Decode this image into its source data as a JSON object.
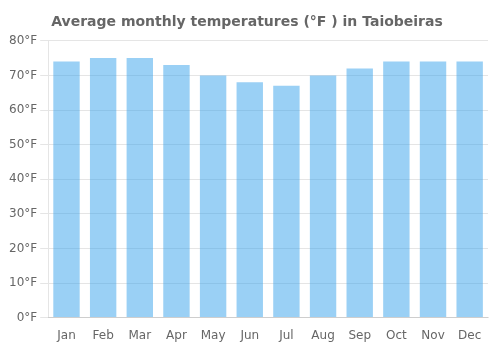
{
  "chart_data": {
    "type": "bar",
    "title": "Average monthly temperatures (°F ) in Taiobeiras",
    "categories": [
      "Jan",
      "Feb",
      "Mar",
      "Apr",
      "May",
      "Jun",
      "Jul",
      "Aug",
      "Sep",
      "Oct",
      "Nov",
      "Dec"
    ],
    "values": [
      74,
      75,
      75,
      73,
      70,
      68,
      67,
      70,
      72,
      74,
      74,
      74
    ],
    "ylim": [
      0,
      80
    ],
    "yticks": [
      {
        "value": 0,
        "label": "0°F"
      },
      {
        "value": 10,
        "label": "10°F"
      },
      {
        "value": 20,
        "label": "20°F"
      },
      {
        "value": 30,
        "label": "30°F"
      },
      {
        "value": 40,
        "label": "40°F"
      },
      {
        "value": 50,
        "label": "50°F"
      },
      {
        "value": 60,
        "label": "60°F"
      },
      {
        "value": 70,
        "label": "70°F"
      },
      {
        "value": 80,
        "label": "80°F"
      }
    ],
    "grid": true
  }
}
